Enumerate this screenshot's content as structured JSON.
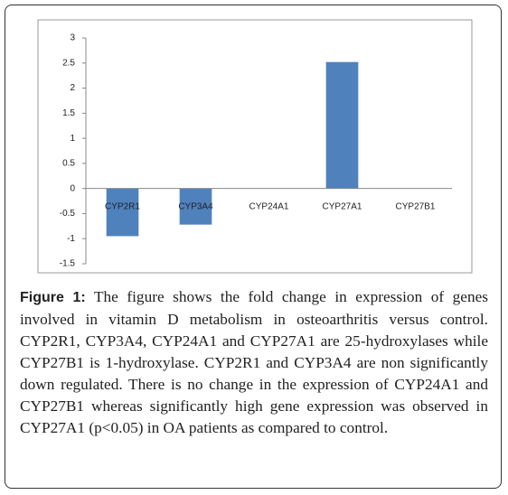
{
  "chart_data": {
    "type": "bar",
    "categories": [
      "CYP2R1",
      "CYP3A4",
      "CYP24A1",
      "CYP27A1",
      "CYP27B1"
    ],
    "values": [
      -0.95,
      -0.72,
      0,
      2.52,
      0
    ],
    "color": "#4f81bd",
    "ylim": [
      -1.5,
      3
    ],
    "yticks": [
      -1.5,
      -1,
      -0.5,
      0,
      0.5,
      1,
      1.5,
      2,
      2.5,
      3
    ],
    "grid": false
  },
  "caption": {
    "label": "Figure 1:",
    "text": "The figure shows the fold change in expression of genes involved in vitamin D metabolism in osteoarthritis versus control. CYP2R1, CYP3A4, CYP24A1 and CYP27A1 are 25-hydroxylases while CYP27B1 is 1-hydroxylase. CYP2R1 and CYP3A4 are non significantly down regulated. There is no change in the expression of CYP24A1 and CYP27B1 whereas significantly high gene expression was observed in CYP27A1 (p<0.05) in OA patients as compared to control."
  }
}
